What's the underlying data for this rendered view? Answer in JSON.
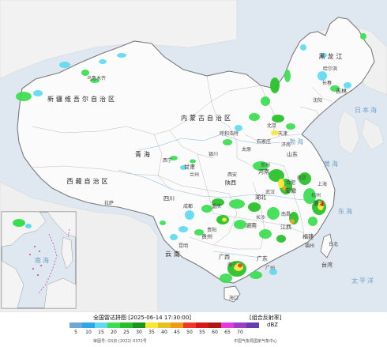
{
  "map": {
    "regions": [
      {
        "id": "xinjiang",
        "label": "新疆维吾尔自治区"
      },
      {
        "id": "xizang",
        "label": "西藏自治区"
      },
      {
        "id": "qinghai",
        "label": "青海"
      },
      {
        "id": "neimenggu",
        "label": "内蒙古自治区"
      },
      {
        "id": "heilongjiang",
        "label": "黑龙江"
      },
      {
        "id": "jilin",
        "label": "吉林"
      },
      {
        "id": "sichuan",
        "label": "四川"
      },
      {
        "id": "yunnan",
        "label": "云南"
      },
      {
        "id": "guangxi",
        "label": "广西"
      },
      {
        "id": "guangdong",
        "label": "广东"
      },
      {
        "id": "hunan",
        "label": "湖南"
      },
      {
        "id": "jiangxi",
        "label": "江西"
      },
      {
        "id": "fujian",
        "label": "福建"
      },
      {
        "id": "hubei",
        "label": "湖北"
      },
      {
        "id": "henan",
        "label": "河南"
      },
      {
        "id": "shandong",
        "label": "山东"
      },
      {
        "id": "gansu",
        "label": "甘肃"
      },
      {
        "id": "shaanxi",
        "label": "陕西"
      },
      {
        "id": "guizhou",
        "label": "贵州"
      },
      {
        "id": "zhejiang",
        "label": "浙江"
      },
      {
        "id": "anhui",
        "label": "安徽"
      },
      {
        "id": "taiwan",
        "label": "台湾"
      }
    ],
    "cities": [
      "乌鲁木齐",
      "拉萨",
      "西宁",
      "呼和浩特",
      "北京",
      "哈尔滨",
      "长春",
      "沈阳",
      "成都",
      "昆明",
      "南宁",
      "广州",
      "长沙",
      "南昌",
      "福州",
      "武汉",
      "郑州",
      "济南",
      "兰州",
      "西安",
      "贵阳",
      "杭州",
      "合肥",
      "台北",
      "海口",
      "重庆",
      "南京",
      "上海",
      "天津",
      "石家庄",
      "太原",
      "银川"
    ],
    "seas": [
      "渤海",
      "黄海",
      "东海",
      "太平洋",
      "日本海",
      "南海"
    ]
  },
  "legend": {
    "title": "全国雷达拼图 [2025-06-14 17:30:00]",
    "product": "[组合反射率]",
    "unit": "dBZ",
    "ticks": [
      "5",
      "10",
      "15",
      "20",
      "25",
      "30",
      "35",
      "40",
      "45",
      "50",
      "55",
      "60",
      "65",
      "70"
    ],
    "colors": [
      "#6fa6d4",
      "#2aa7e8",
      "#62d9f0",
      "#3ddd52",
      "#28c028",
      "#1c961c",
      "#f7e833",
      "#e6c220",
      "#f09a18",
      "#ee3a22",
      "#d61a1a",
      "#b01616",
      "#e23adc",
      "#9a40c8",
      "#6a3ab0"
    ],
    "approval": "审图号: GS京 (2022) 0372号",
    "source": "中国气象局国家气象中心"
  }
}
